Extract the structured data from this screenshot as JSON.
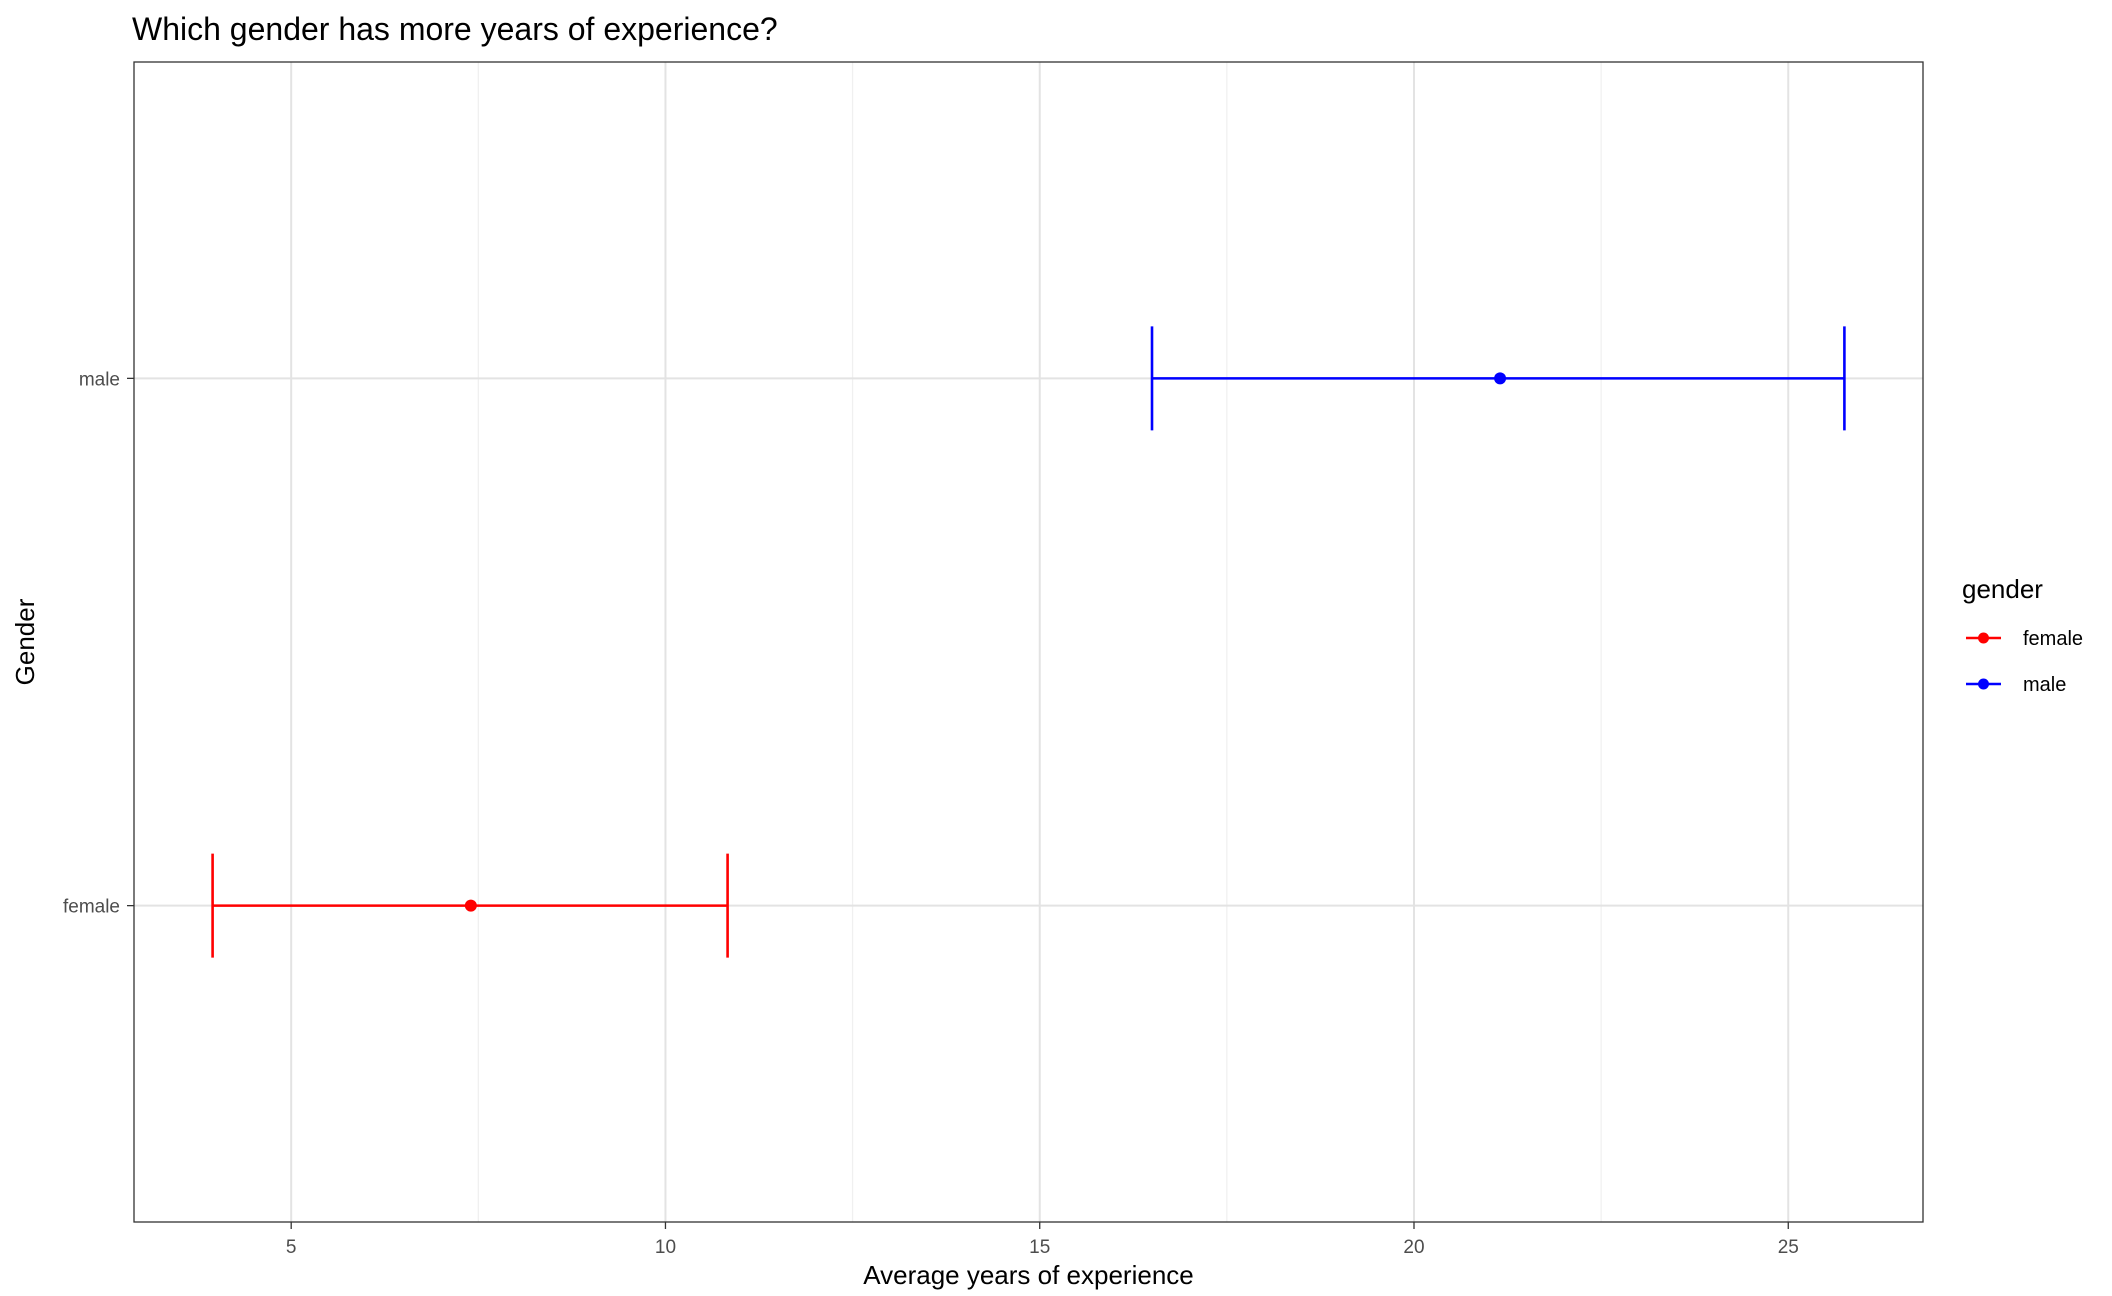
{
  "chart_data": {
    "type": "errorbar",
    "title": "Which gender has more years of experience?",
    "xlabel": "Average years of experience",
    "ylabel": "Gender",
    "xlim": [
      2.9,
      26.8
    ],
    "x_ticks": [
      5,
      10,
      15,
      20,
      25
    ],
    "categories": [
      "female",
      "male"
    ],
    "grid": true,
    "legend": {
      "title": "gender",
      "position": "right",
      "entries": [
        "female",
        "male"
      ]
    },
    "series": [
      {
        "name": "female",
        "color": "#ff0000",
        "mean": 7.4,
        "lower": 3.95,
        "upper": 10.83
      },
      {
        "name": "male",
        "color": "#0000ff",
        "mean": 21.15,
        "lower": 16.5,
        "upper": 25.75
      }
    ]
  }
}
